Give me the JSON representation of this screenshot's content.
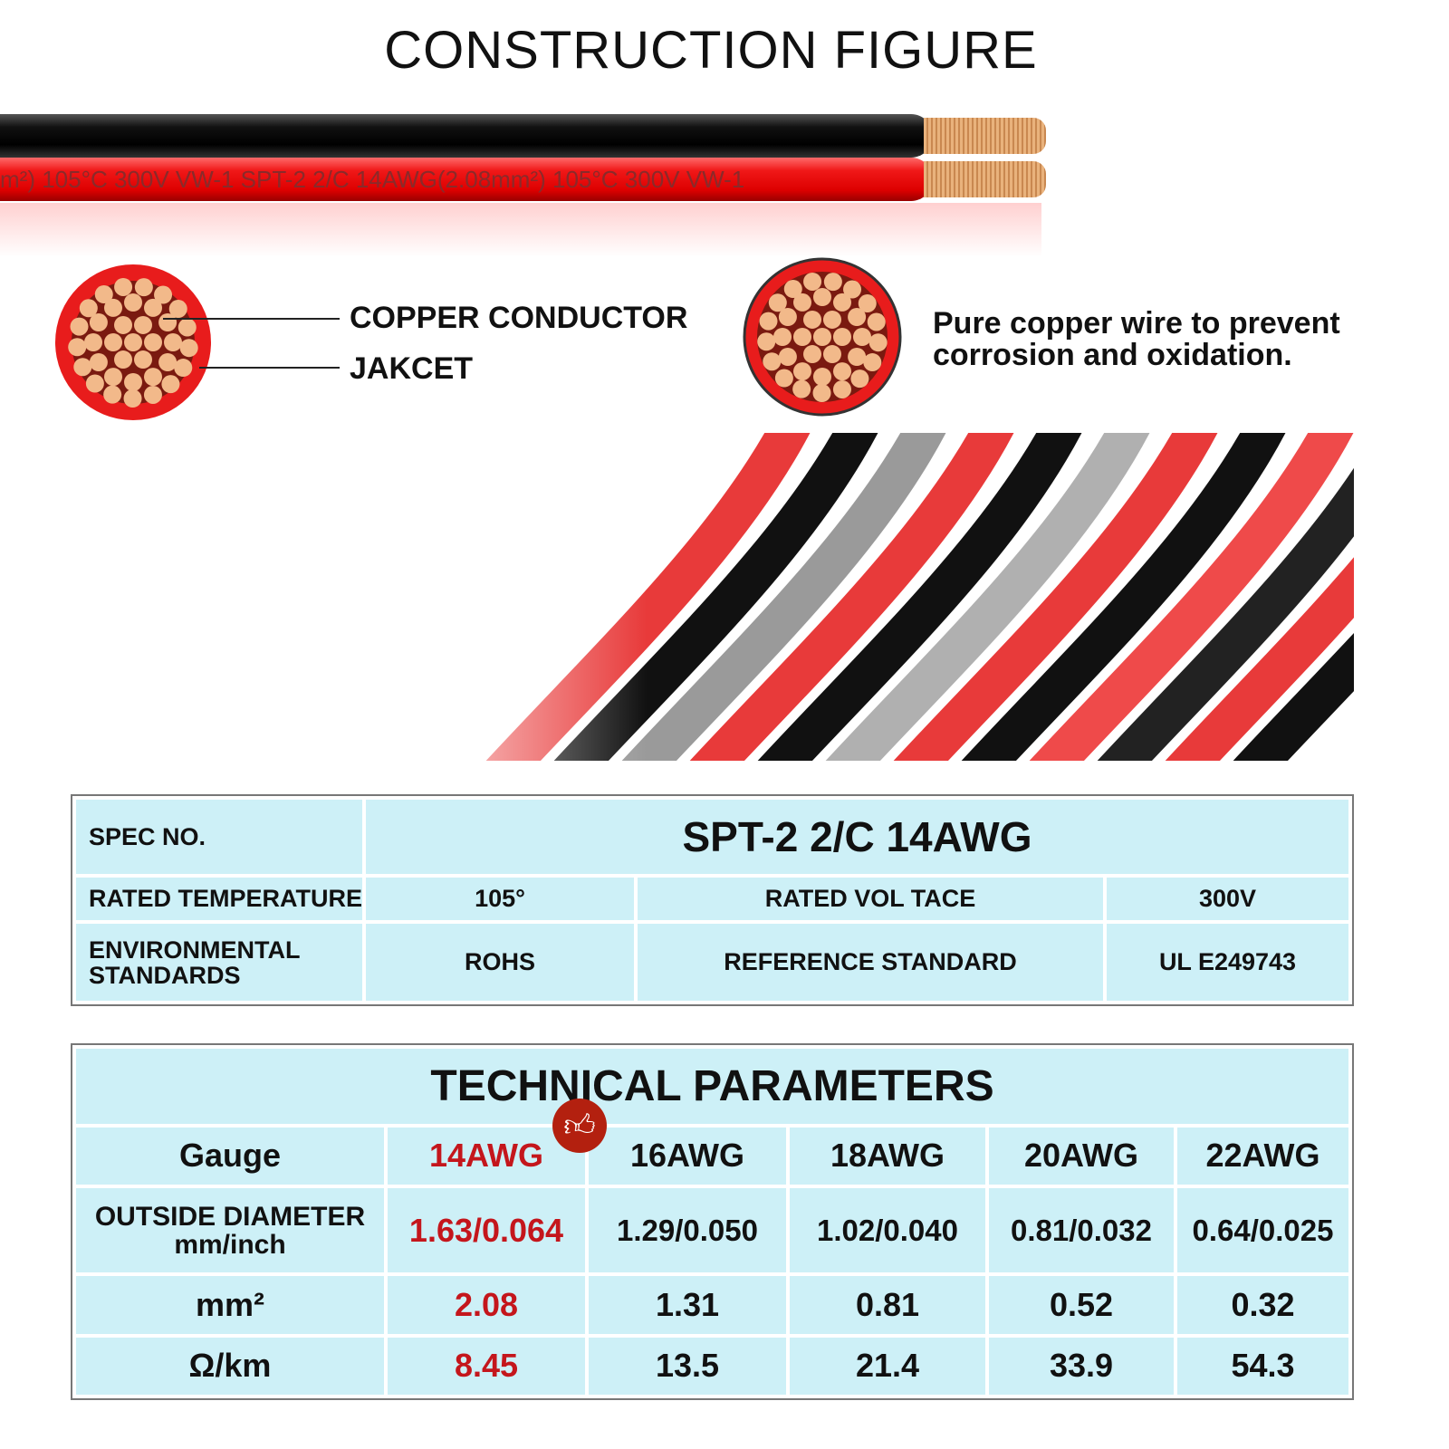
{
  "title": "CONSTRUCTION FIGURE",
  "wire_print": "m²)  105°C  300V  VW-1  SPT-2 2/C  14AWG(2.08mm²)  105°C  300V  VW-1",
  "labels": {
    "conductor": "COPPER CONDUCTOR",
    "jacket": "JAKCET",
    "description": "Pure copper wire to prevent corrosion and oxidation."
  },
  "colors": {
    "wire_red": "#e81c1c",
    "wire_black": "#111111",
    "copper": "#e0a36a",
    "table_bg": "#cdf0f7",
    "highlight": "#c4161c"
  },
  "spec_table": {
    "spec_label": "SPEC NO.",
    "spec_value": "SPT-2 2/C 14AWG",
    "temp_label": "RATED TEMPERATURE",
    "temp_value": "105°",
    "voltage_label": "RATED VOL TACE",
    "voltage_value": "300V",
    "env_label": "ENVIRONMENTAL STANDARDS",
    "env_value": "ROHS",
    "ref_label": "REFERENCE STANDARD",
    "ref_value": "UL E249743"
  },
  "tech_table": {
    "title": "TECHNICAL PARAMETERS",
    "recommended_icon": "thumbs-up-icon",
    "rows": [
      {
        "label": "Gauge",
        "values": [
          "14AWG",
          "16AWG",
          "18AWG",
          "20AWG",
          "22AWG"
        ]
      },
      {
        "label": "OUTSIDE DIAMETER",
        "sublabel": "mm/inch",
        "values": [
          "1.63/0.064",
          "1.29/0.050",
          "1.02/0.040",
          "0.81/0.032",
          "0.64/0.025"
        ]
      },
      {
        "label": "mm²",
        "values": [
          "2.08",
          "1.31",
          "0.81",
          "0.52",
          "0.32"
        ]
      },
      {
        "label": "Ω/km",
        "values": [
          "8.45",
          "13.5",
          "21.4",
          "33.9",
          "54.3"
        ]
      }
    ]
  }
}
